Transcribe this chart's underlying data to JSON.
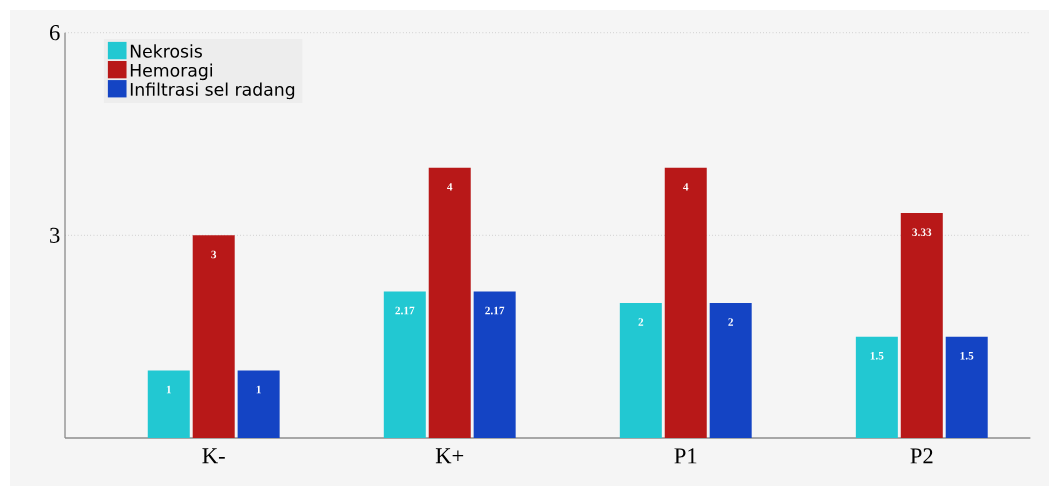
{
  "chart_data": {
    "type": "bar",
    "categories": [
      "K-",
      "K+",
      "P1",
      "P2"
    ],
    "series": [
      {
        "name": "Nekrosis",
        "color": "#22c8d2",
        "values": [
          1,
          2.17,
          2,
          1.5
        ]
      },
      {
        "name": "Hemoragi",
        "color": "#b81818",
        "values": [
          3,
          4,
          4,
          3.33
        ]
      },
      {
        "name": "Infiltrasi sel radang",
        "color": "#1444c4",
        "values": [
          1,
          2.17,
          2,
          1.5
        ]
      }
    ],
    "ylim": [
      0,
      6
    ],
    "yticks": [
      3,
      6
    ],
    "grid": "y",
    "legend": "top left",
    "data_labels": true
  }
}
